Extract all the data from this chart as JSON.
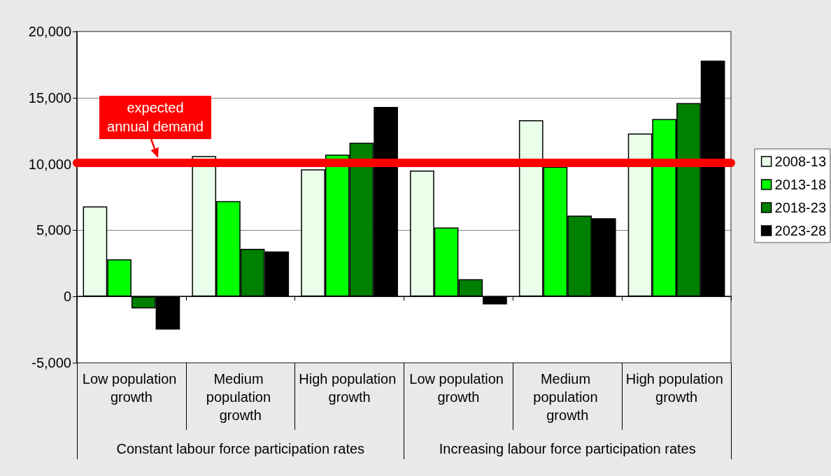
{
  "chart_data": {
    "type": "bar",
    "categories": [
      "Low population growth",
      "Medium population growth",
      "High population growth",
      "Low population growth",
      "Medium population growth",
      "High population growth"
    ],
    "series": [
      {
        "name": "2008-13",
        "color": "#eaffea",
        "values": [
          6800,
          10600,
          9600,
          9500,
          13300,
          12300
        ]
      },
      {
        "name": "2013-18",
        "color": "#00ff00",
        "values": [
          2800,
          7200,
          10700,
          5200,
          9800,
          13400
        ]
      },
      {
        "name": "2018-23",
        "color": "#008000",
        "values": [
          -900,
          3600,
          11600,
          1300,
          6100,
          14600
        ]
      },
      {
        "name": "2023-28",
        "color": "#000000",
        "values": [
          -2500,
          3400,
          14300,
          -600,
          5900,
          17800
        ]
      }
    ],
    "ylim": [
      -5000,
      20000
    ],
    "yticks": [
      {
        "value": -5000,
        "label": "-5,000"
      },
      0,
      {
        "value": 5000,
        "label": "5,000"
      },
      {
        "value": 10000,
        "label": "10,000"
      },
      {
        "value": 15000,
        "label": "15,000"
      },
      {
        "value": 20000,
        "label": "20,000"
      }
    ],
    "ref_lines": [
      {
        "axis": "y",
        "value": 10100,
        "label": "expected annual demand",
        "color": "#ff0000"
      }
    ],
    "annotations": [
      "Constant labour force participation rates",
      "Increasing labour force participation rates"
    ],
    "grid": "y",
    "legend": "right"
  }
}
